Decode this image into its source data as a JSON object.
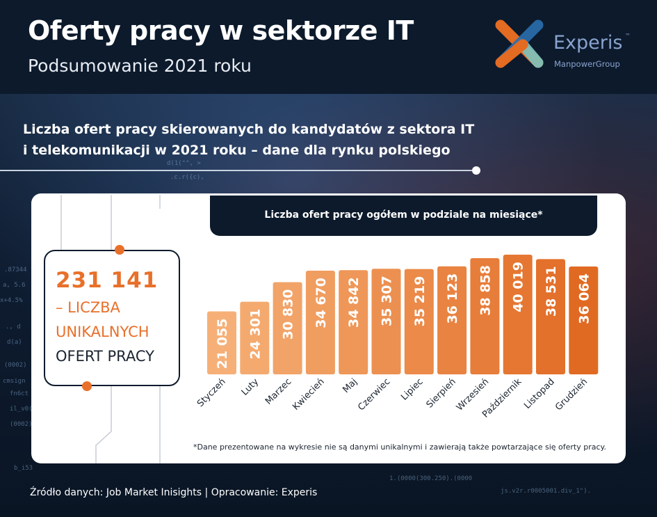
{
  "header": {
    "title": "Oferty pracy w sektorze IT",
    "subtitle": "Podsumowanie 2021 roku",
    "logo_name": "Experis",
    "logo_tm": "™",
    "logo_sub": "ManpowerGroup"
  },
  "section": {
    "title_line_1": "Liczba ofert pracy skierowanych do kandydatów z sektora IT",
    "title_line_2": "i telekomunikacji w 2021 roku – dane dla rynku polskiego"
  },
  "summary": {
    "value": "231 141",
    "line_1": "– LICZBA",
    "line_2": "UNIKALNYCH",
    "line_3": "OFERT PRACY"
  },
  "footnote": "*Dane prezentowane na wykresie nie są danymi unikalnymi i zawierają także powtarzające się oferty pracy.",
  "source": "Źródło danych: Job Market Inisights | Opracowanie: Experis",
  "colors": {
    "light_orange": "#f6b077",
    "dark_orange": "#e16a23",
    "navy": "#0c1a2c"
  },
  "chart_data": {
    "type": "bar",
    "title": "Liczba ofert pracy ogółem w podziale na miesiące*",
    "categories": [
      "Styczeń",
      "Luty",
      "Marzec",
      "Kwiecień",
      "Maj",
      "Czerwiec",
      "Lipiec",
      "Sierpień",
      "Wrzesień",
      "Październik",
      "Listopad",
      "Grudzień"
    ],
    "values": [
      21055,
      24301,
      30830,
      34670,
      34842,
      35307,
      35219,
      36123,
      38858,
      40019,
      38531,
      36064
    ],
    "value_labels": [
      "21 055",
      "24 301",
      "30 830",
      "34 670",
      "34 842",
      "35 307",
      "35 219",
      "36 123",
      "38 858",
      "40 019",
      "38 531",
      "36 064"
    ],
    "xlabel": "",
    "ylabel": "",
    "grid": false,
    "legend": "none"
  }
}
